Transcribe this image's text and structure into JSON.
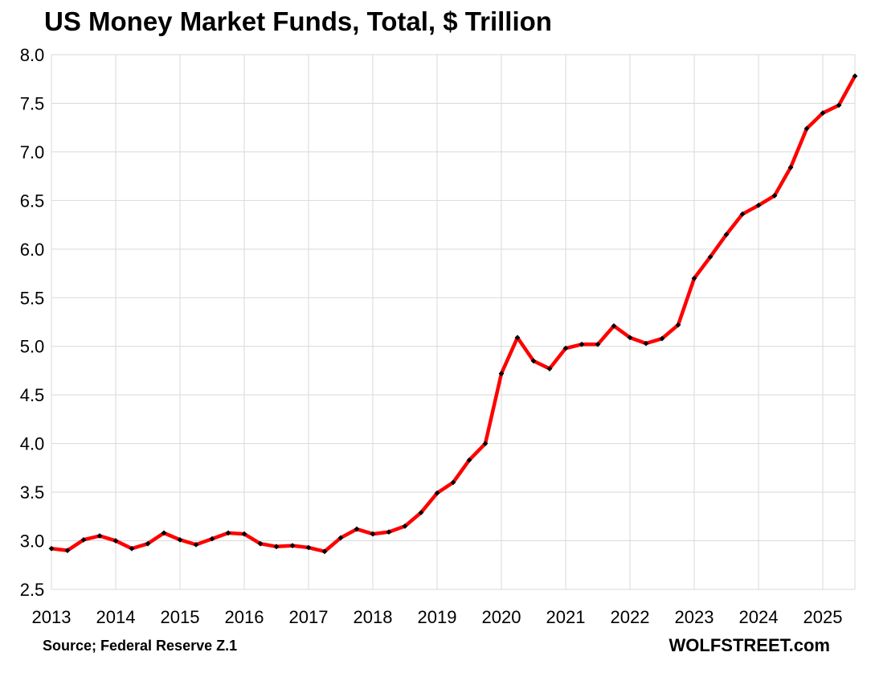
{
  "chart_data": {
    "type": "line",
    "title": "US Money Market Funds, Total, $ Trillion",
    "xlabel": "",
    "ylabel": "",
    "source": "Source; Federal Reserve Z.1",
    "brand": "WOLFSTREET.com",
    "x_ticks": [
      "2013",
      "2014",
      "2015",
      "2016",
      "2017",
      "2018",
      "2019",
      "2020",
      "2021",
      "2022",
      "2023",
      "2024",
      "2025"
    ],
    "y_ticks": [
      "2.5",
      "3.0",
      "3.5",
      "4.0",
      "4.5",
      "5.0",
      "5.5",
      "6.0",
      "6.5",
      "7.0",
      "7.5",
      "8.0"
    ],
    "ylim": [
      2.5,
      8.0
    ],
    "xlim": [
      2013.0,
      2025.5
    ],
    "grid": true,
    "legend": "none",
    "line_color": "#ff0000",
    "marker_color": "#000000",
    "series": [
      {
        "x": [
          2013.0,
          2013.25,
          2013.5,
          2013.75,
          2014.0,
          2014.25,
          2014.5,
          2014.75,
          2015.0,
          2015.25,
          2015.5,
          2015.75,
          2016.0,
          2016.25,
          2016.5,
          2016.75,
          2017.0,
          2017.25,
          2017.5,
          2017.75,
          2018.0,
          2018.25,
          2018.5,
          2018.75,
          2019.0,
          2019.25,
          2019.5,
          2019.75,
          2020.0,
          2020.25,
          2020.5,
          2020.75,
          2021.0,
          2021.25,
          2021.5,
          2021.75,
          2022.0,
          2022.25,
          2022.5,
          2022.75,
          2023.0,
          2023.25,
          2023.5,
          2023.75,
          2024.0,
          2024.25,
          2024.5,
          2024.75,
          2025.0,
          2025.25,
          2025.5
        ],
        "values": [
          2.92,
          2.9,
          3.01,
          3.05,
          3.0,
          2.92,
          2.97,
          3.08,
          3.01,
          2.96,
          3.02,
          3.08,
          3.07,
          2.97,
          2.94,
          2.95,
          2.93,
          2.89,
          3.03,
          3.12,
          3.07,
          3.09,
          3.15,
          3.29,
          3.49,
          3.6,
          3.83,
          4.0,
          4.72,
          5.09,
          4.85,
          4.77,
          4.98,
          5.02,
          5.02,
          5.21,
          5.09,
          5.03,
          5.08,
          5.22,
          5.7,
          5.92,
          6.15,
          6.36,
          6.45,
          6.55,
          6.84,
          7.24,
          7.4,
          7.48,
          7.78
        ]
      }
    ]
  }
}
